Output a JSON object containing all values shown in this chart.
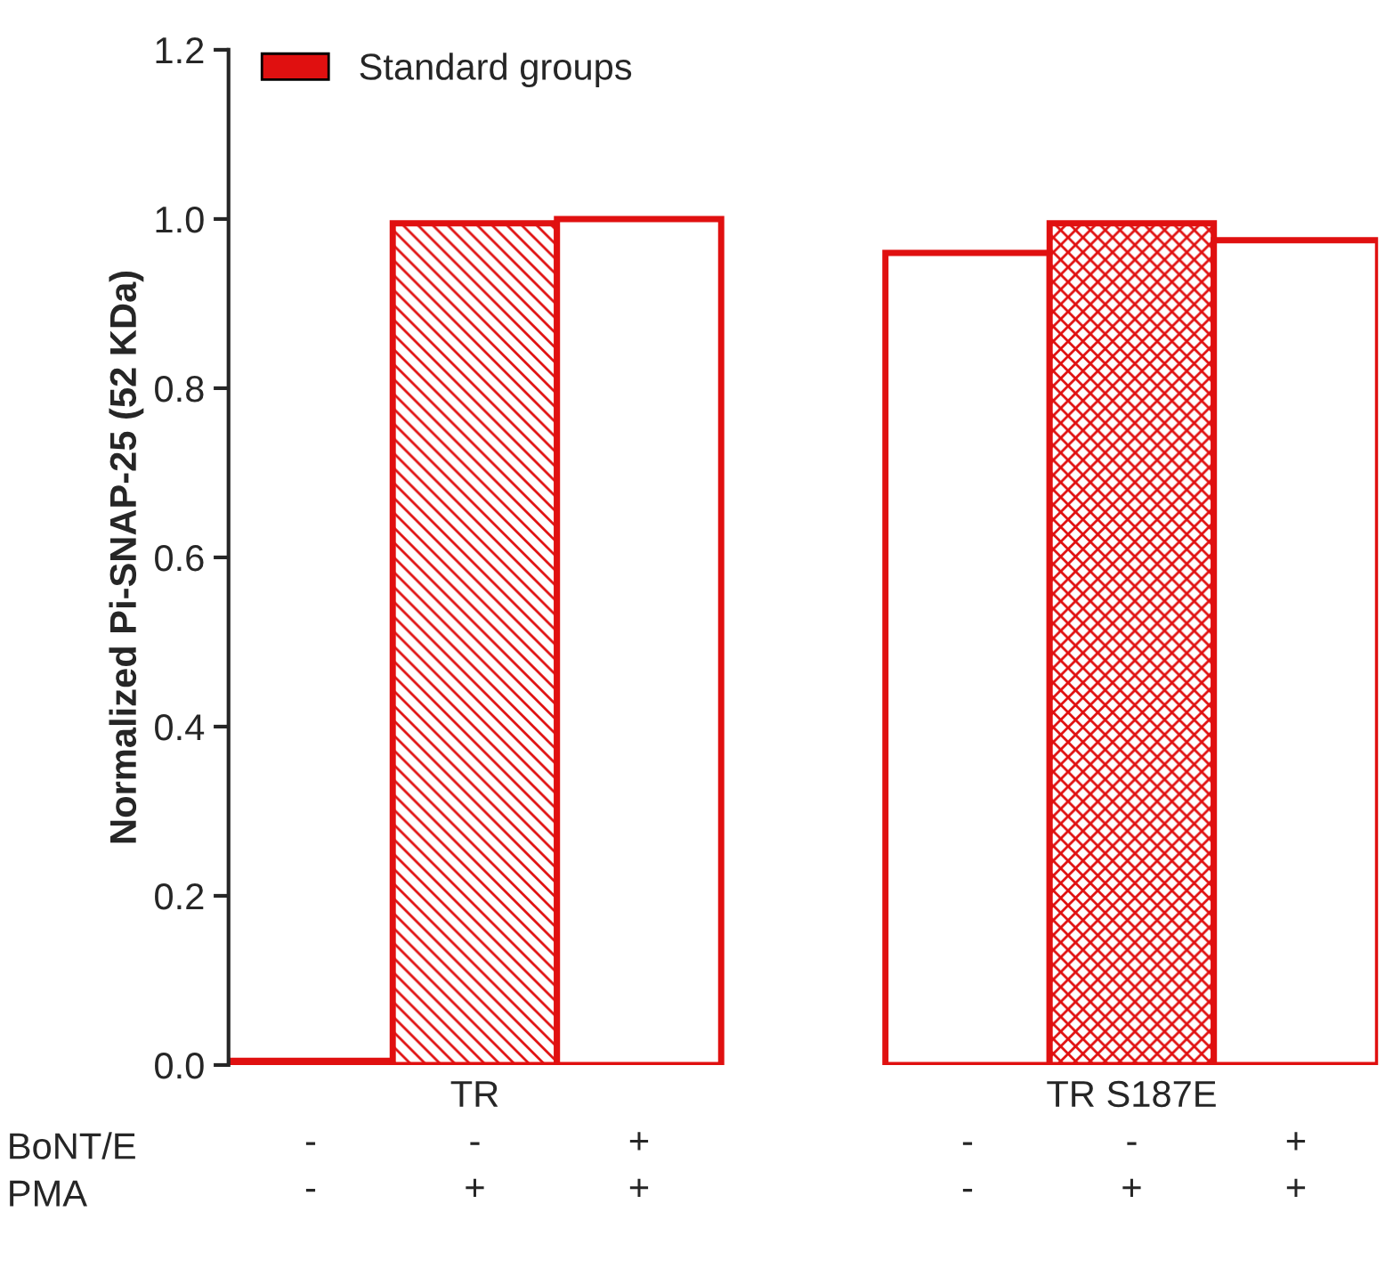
{
  "chart_data": {
    "type": "bar",
    "ylabel": "Normalized Pi-SNAP-25 (52 KDa)",
    "categories": [
      "\n-\n-",
      "TR\n-\n+",
      "\n+\n+",
      null,
      "\n-\n-",
      "TR S187E\n-\n+",
      "\n+\n+"
    ],
    "series": [
      {
        "name": "Standard groups",
        "color": "#e01010",
        "values": [
          0.005,
          0.995,
          1.0,
          null,
          0.96,
          0.995,
          0.975
        ]
      }
    ],
    "annotations": [
      "BoNT/E",
      "PMA"
    ],
    "ylim": [
      0.0,
      1.2
    ],
    "yticks": [
      {
        "value": 0,
        "label": "0.0"
      },
      0.2,
      0.4,
      0.6,
      0.8,
      {
        "value": 1,
        "label": "1.0"
      },
      1.2
    ],
    "grid": false,
    "legend": "top left"
  }
}
